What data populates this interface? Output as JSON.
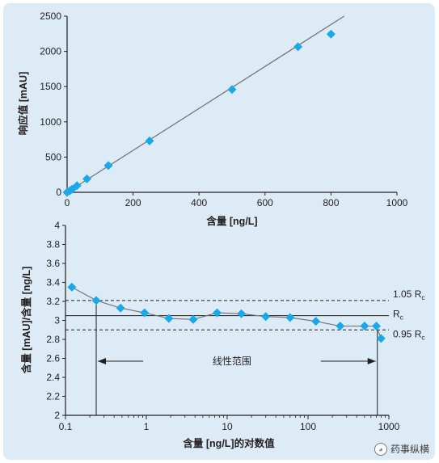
{
  "chart_data": [
    {
      "type": "scatter",
      "xlabel": "含量 [ng/L]",
      "ylabel": "响应值 [mAU]",
      "xlim": [
        0,
        1000
      ],
      "ylim": [
        0,
        2500
      ],
      "x_ticks": [
        "0",
        "200",
        "400",
        "600",
        "800",
        "1000"
      ],
      "y_ticks": [
        "0",
        "500",
        "1000",
        "1500",
        "2000",
        "2500"
      ],
      "grid": false,
      "series": [
        {
          "points": [
            {
              "x": 0,
              "y": 0
            },
            {
              "x": 8,
              "y": 20
            },
            {
              "x": 15,
              "y": 45
            },
            {
              "x": 30,
              "y": 95
            },
            {
              "x": 60,
              "y": 190
            },
            {
              "x": 125,
              "y": 380
            },
            {
              "x": 250,
              "y": 730
            },
            {
              "x": 500,
              "y": 1460
            },
            {
              "x": 700,
              "y": 2065
            },
            {
              "x": 800,
              "y": 2245
            }
          ]
        }
      ],
      "fit_line": {
        "x": [
          0,
          840
        ],
        "y": [
          0,
          2500
        ]
      }
    },
    {
      "type": "line",
      "xlabel": "含量 [ng/L]的对数值",
      "ylabel": "含量 [mAU]/含量 [ng/L]",
      "x_scale": "log",
      "xlim": [
        0.1,
        1000
      ],
      "ylim": [
        2,
        4
      ],
      "x_ticks": [
        "0.1",
        "1",
        "10",
        "100",
        "1000"
      ],
      "y_ticks": [
        "2",
        "2.2",
        "2.4",
        "2.6",
        "2.8",
        "3",
        "3.2",
        "3.4",
        "3.6",
        "3.8",
        "4"
      ],
      "grid": false,
      "series": [
        {
          "points": [
            {
              "x": 0.12,
              "y": 3.35
            },
            {
              "x": 0.24,
              "y": 3.21
            },
            {
              "x": 0.48,
              "y": 3.13
            },
            {
              "x": 0.95,
              "y": 3.08
            },
            {
              "x": 1.9,
              "y": 3.02
            },
            {
              "x": 3.8,
              "y": 3.01
            },
            {
              "x": 7.5,
              "y": 3.08
            },
            {
              "x": 15,
              "y": 3.07
            },
            {
              "x": 30,
              "y": 3.04
            },
            {
              "x": 60,
              "y": 3.03
            },
            {
              "x": 125,
              "y": 2.99
            },
            {
              "x": 250,
              "y": 2.94
            },
            {
              "x": 500,
              "y": 2.94
            },
            {
              "x": 700,
              "y": 2.94
            },
            {
              "x": 800,
              "y": 2.81
            }
          ]
        }
      ],
      "reference_lines": [
        {
          "y": 3.21,
          "style": "dashed",
          "label_main": "1.05 R",
          "label_sub": "c"
        },
        {
          "y": 3.05,
          "style": "solid",
          "label_main": "R",
          "label_sub": "c"
        },
        {
          "y": 2.9,
          "style": "dashed",
          "label_main": "0.95 R",
          "label_sub": "c"
        }
      ],
      "linear_range": {
        "x_start": 0.24,
        "x_end": 720,
        "label": "线性范围",
        "arrow_y": 2.57
      }
    }
  ],
  "colors": {
    "marker": "#1ba8e8",
    "line": "#777777",
    "panel_background": "#dcebf6",
    "axis": "#231f20"
  },
  "watermark": {
    "icon": "wechat-icon",
    "text": "药事纵横"
  }
}
